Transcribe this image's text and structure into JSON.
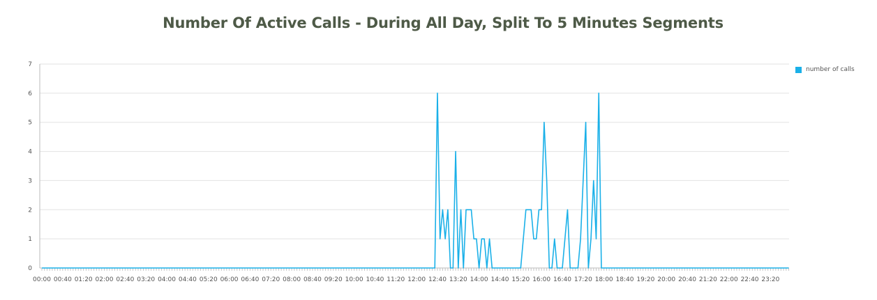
{
  "chart_data": {
    "type": "line",
    "title": "Number Of Active Calls - During All Day, Split To 5 Minutes Segments",
    "xlabel": "",
    "ylabel": "",
    "ylim": [
      0,
      7
    ],
    "yticks": [
      0,
      1,
      2,
      3,
      4,
      5,
      6,
      7
    ],
    "x_tick_labels": [
      "00:00",
      "00:40",
      "01:20",
      "02:00",
      "02:40",
      "03:20",
      "04:00",
      "04:40",
      "05:20",
      "06:00",
      "06:40",
      "07:20",
      "08:00",
      "08:40",
      "09:20",
      "10:00",
      "10:40",
      "11:20",
      "12:00",
      "12:40",
      "13:20",
      "14:00",
      "14:40",
      "15:20",
      "16:00",
      "16:40",
      "17:20",
      "18:00",
      "18:40",
      "19:20",
      "20:00",
      "20:40",
      "21:20",
      "22:00",
      "22:40",
      "23:20"
    ],
    "segments_per_day": 288,
    "segment_minutes": 5,
    "grid": true,
    "legend_position": "top-right",
    "series": [
      {
        "name": "number of calls",
        "color": "#1ab0e8",
        "points": [
          [
            "12:30",
            0
          ],
          [
            "12:35",
            0
          ],
          [
            "12:40",
            6
          ],
          [
            "12:45",
            1
          ],
          [
            "12:50",
            2
          ],
          [
            "12:55",
            1
          ],
          [
            "13:00",
            2
          ],
          [
            "13:05",
            0
          ],
          [
            "13:10",
            0
          ],
          [
            "13:15",
            4
          ],
          [
            "13:20",
            0
          ],
          [
            "13:25",
            2
          ],
          [
            "13:30",
            0
          ],
          [
            "13:35",
            2
          ],
          [
            "13:40",
            2
          ],
          [
            "13:45",
            2
          ],
          [
            "13:50",
            1
          ],
          [
            "13:55",
            1
          ],
          [
            "14:00",
            0
          ],
          [
            "14:05",
            1
          ],
          [
            "14:10",
            1
          ],
          [
            "14:15",
            0
          ],
          [
            "14:20",
            1
          ],
          [
            "14:25",
            0
          ],
          [
            "14:30",
            0
          ],
          [
            "14:35",
            0
          ],
          [
            "14:40",
            0
          ],
          [
            "14:45",
            0
          ],
          [
            "14:50",
            0
          ],
          [
            "14:55",
            0
          ],
          [
            "15:00",
            0
          ],
          [
            "15:05",
            0
          ],
          [
            "15:10",
            0
          ],
          [
            "15:15",
            0
          ],
          [
            "15:20",
            0
          ],
          [
            "15:25",
            1
          ],
          [
            "15:30",
            2
          ],
          [
            "15:35",
            2
          ],
          [
            "15:40",
            2
          ],
          [
            "15:45",
            1
          ],
          [
            "15:50",
            1
          ],
          [
            "15:55",
            2
          ],
          [
            "16:00",
            2
          ],
          [
            "16:05",
            5
          ],
          [
            "16:10",
            3
          ],
          [
            "16:15",
            0
          ],
          [
            "16:20",
            0
          ],
          [
            "16:25",
            1
          ],
          [
            "16:30",
            0
          ],
          [
            "16:35",
            0
          ],
          [
            "16:40",
            0
          ],
          [
            "16:45",
            1
          ],
          [
            "16:50",
            2
          ],
          [
            "16:55",
            0
          ],
          [
            "17:00",
            0
          ],
          [
            "17:05",
            0
          ],
          [
            "17:10",
            0
          ],
          [
            "17:15",
            1
          ],
          [
            "17:20",
            3
          ],
          [
            "17:25",
            5
          ],
          [
            "17:30",
            0
          ],
          [
            "17:35",
            1
          ],
          [
            "17:40",
            3
          ],
          [
            "17:45",
            1
          ],
          [
            "17:50",
            6
          ],
          [
            "17:55",
            0
          ],
          [
            "18:00",
            0
          ]
        ]
      }
    ]
  }
}
